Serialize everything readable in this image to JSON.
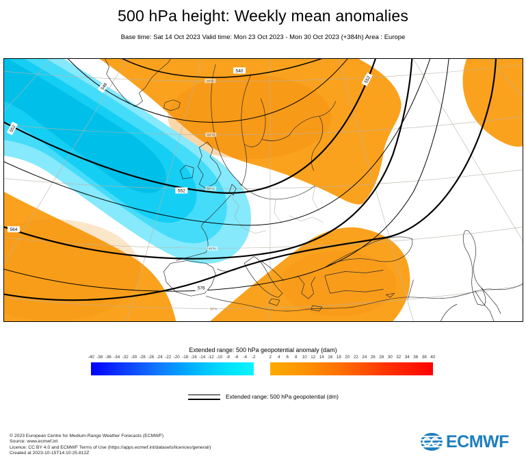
{
  "header": {
    "title": "500 hPa height: Weekly mean anomalies",
    "subtitle": "Base time: Sat 14 Oct 2023 Valid time: Mon 23 Oct 2023 - Mon 30 Oct 2023 (+384h) Area : Europe"
  },
  "map": {
    "description": "500 hPa geopotential contours with weekly mean anomaly shading over Europe/North Atlantic",
    "contour_labels": [
      "540",
      "546",
      "552",
      "552",
      "552",
      "564",
      "576"
    ],
    "grid_labels": [
      "70°N",
      "60°N",
      "50°N",
      "40°N",
      "30°N"
    ],
    "colors": {
      "negative_anomaly_bands": [
        "#86e9fc",
        "#45dcf9",
        "#15cef4",
        "#00c0ea"
      ],
      "positive_anomaly": "#faa21e",
      "positive_anomaly_deep": "#f28d0e",
      "contour": "#000000",
      "graticule": "#b9b2a6",
      "coastline": "#2a2a2a"
    }
  },
  "colorbar": {
    "title": "Extended range: 500 hPa geopotential anomaly (dam)",
    "ticks_negative": [
      "-40",
      "-38",
      "-36",
      "-34",
      "-32",
      "-30",
      "-28",
      "-26",
      "-24",
      "-22",
      "-20",
      "-18",
      "-16",
      "-14",
      "-12",
      "-10",
      "-8",
      "-6",
      "-4",
      "-2"
    ],
    "ticks_positive": [
      "2",
      "4",
      "6",
      "8",
      "10",
      "12",
      "14",
      "16",
      "18",
      "20",
      "22",
      "24",
      "26",
      "28",
      "30",
      "32",
      "34",
      "36",
      "38",
      "40"
    ],
    "negative_gradient": [
      "#0100fe",
      "#0a2bff",
      "#0f52ff",
      "#0f7dff",
      "#00a4ff",
      "#00c8ff",
      "#00e4ff",
      "#0ff3ff"
    ],
    "positive_gradient": [
      "#ffaa00",
      "#ff9b00",
      "#ff8700",
      "#ff6f00",
      "#ff5200",
      "#ff3300",
      "#fe1b00",
      "#fb0300"
    ]
  },
  "line_legend": {
    "label": "Extended range: 500 hPa geopotential (dm)"
  },
  "footer": {
    "lines": [
      "© 2023 European Centre for Medium-Range Weather Forecasts (ECMWF)",
      "Source: www.ecmwf.int",
      "Licence: CC BY 4.0 and ECMWF Terms of Use (https://apps.ecmwf.int/datasets/licences/general/)",
      "Created at 2023-10-15T14:10:25.812Z"
    ]
  },
  "logo": {
    "text": "ECMWF",
    "color": "#1d7dbe"
  }
}
